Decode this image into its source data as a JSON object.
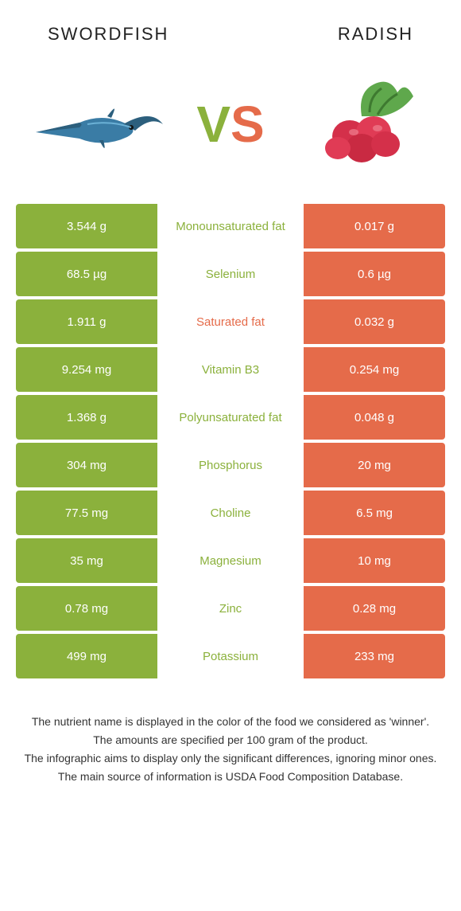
{
  "colors": {
    "left": "#8bb13c",
    "right": "#e56b4a",
    "mid_bg": "#ffffff"
  },
  "titles": {
    "left": "Swordfish",
    "right": "Radish"
  },
  "vs": {
    "v": "V",
    "s": "S"
  },
  "rows": [
    {
      "left": "3.544 g",
      "label": "Monounsaturated fat",
      "right": "0.017 g",
      "winner": "left"
    },
    {
      "left": "68.5 µg",
      "label": "Selenium",
      "right": "0.6 µg",
      "winner": "left"
    },
    {
      "left": "1.911 g",
      "label": "Saturated fat",
      "right": "0.032 g",
      "winner": "right"
    },
    {
      "left": "9.254 mg",
      "label": "Vitamin B3",
      "right": "0.254 mg",
      "winner": "left"
    },
    {
      "left": "1.368 g",
      "label": "Polyunsaturated fat",
      "right": "0.048 g",
      "winner": "left"
    },
    {
      "left": "304 mg",
      "label": "Phosphorus",
      "right": "20 mg",
      "winner": "left"
    },
    {
      "left": "77.5 mg",
      "label": "Choline",
      "right": "6.5 mg",
      "winner": "left"
    },
    {
      "left": "35 mg",
      "label": "Magnesium",
      "right": "10 mg",
      "winner": "left"
    },
    {
      "left": "0.78 mg",
      "label": "Zinc",
      "right": "0.28 mg",
      "winner": "left"
    },
    {
      "left": "499 mg",
      "label": "Potassium",
      "right": "233 mg",
      "winner": "left"
    }
  ],
  "footer": [
    "The nutrient name is displayed in the color of the food we considered as 'winner'.",
    "The amounts are specified per 100 gram of the product.",
    "The infographic aims to display only the significant differences, ignoring minor ones.",
    "The main source of information is USDA Food Composition Database."
  ]
}
